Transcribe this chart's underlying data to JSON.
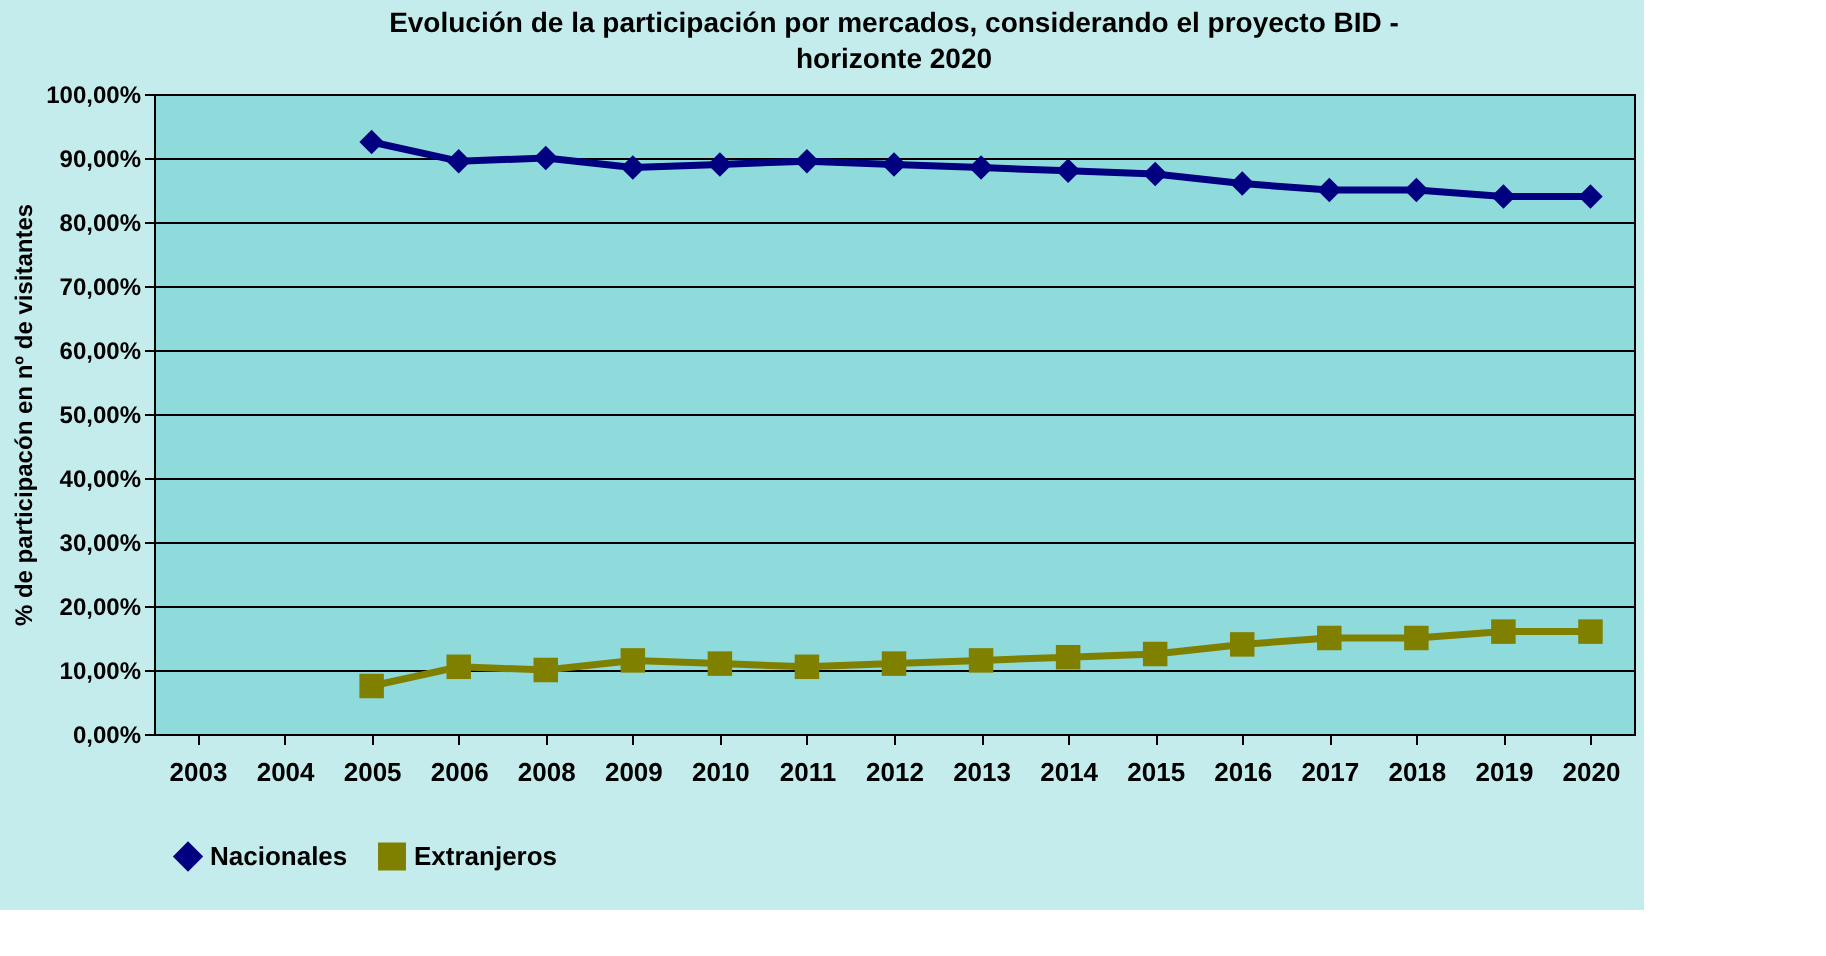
{
  "chart_data": {
    "type": "line",
    "title": "Evolución de la participación por mercados, considerando el proyecto BID - horizonte 2020",
    "ylabel": "% de participacón en nº de visitantes",
    "categories": [
      "2003",
      "2004",
      "2005",
      "2006",
      "2008",
      "2009",
      "2010",
      "2011",
      "2012",
      "2013",
      "2014",
      "2015",
      "2016",
      "2017",
      "2018",
      "2019",
      "2020"
    ],
    "series": [
      {
        "name": "Nacionales",
        "color": "#000080",
        "marker": "diamond",
        "values": [
          null,
          null,
          92.5,
          89.5,
          90,
          88.5,
          89,
          89.5,
          89,
          88.5,
          88,
          87.5,
          86,
          85,
          85,
          84,
          84
        ]
      },
      {
        "name": "Extranjeros",
        "color": "#808000",
        "marker": "square",
        "values": [
          null,
          null,
          7.5,
          10.5,
          10,
          11.5,
          11,
          10.5,
          11,
          11.5,
          12,
          12.5,
          14,
          15,
          15,
          16,
          16
        ]
      }
    ],
    "ylim": [
      0,
      100
    ],
    "yticks": [
      {
        "value": 0,
        "label": "0,00%"
      },
      {
        "value": 10,
        "label": "10,00%"
      },
      {
        "value": 20,
        "label": "20,00%"
      },
      {
        "value": 30,
        "label": "30,00%"
      },
      {
        "value": 40,
        "label": "40,00%"
      },
      {
        "value": 50,
        "label": "50,00%"
      },
      {
        "value": 60,
        "label": "60,00%"
      },
      {
        "value": 70,
        "label": "70,00%"
      },
      {
        "value": 80,
        "label": "80,00%"
      },
      {
        "value": 90,
        "label": "90,00%"
      },
      {
        "value": 100,
        "label": "100,00%"
      }
    ],
    "grid": "y",
    "legend": "bottom"
  }
}
